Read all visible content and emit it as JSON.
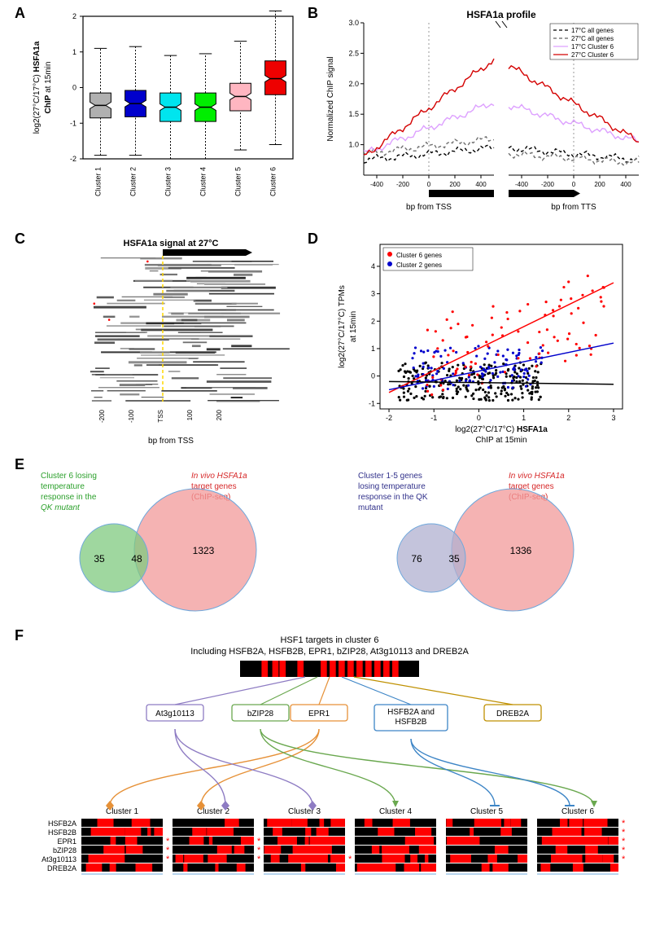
{
  "panelA": {
    "label": "A",
    "ylabel_line1": "log2(27°C/17°C) HSFA1a",
    "ylabel_line2": "ChIP at 15min",
    "ylabel_bold": "HSFA1a",
    "yticks": [
      "-2",
      "-1",
      "0",
      "1",
      "2"
    ],
    "categories": [
      "Cluster 1",
      "Cluster 2",
      "Cluster 3",
      "Cluster 4",
      "Cluster 5",
      "Cluster 6"
    ],
    "boxes": [
      {
        "fill": "#b0b0b0",
        "median": -0.5,
        "q1": -0.85,
        "q3": -0.15,
        "wlo": -1.9,
        "whi": 1.1
      },
      {
        "fill": "#0000cc",
        "median": -0.45,
        "q1": -0.82,
        "q3": -0.08,
        "wlo": -1.9,
        "whi": 1.15
      },
      {
        "fill": "#00e5ee",
        "median": -0.55,
        "q1": -0.95,
        "q3": -0.15,
        "wlo": -2.0,
        "whi": 0.9
      },
      {
        "fill": "#00ee00",
        "median": -0.55,
        "q1": -0.95,
        "q3": -0.15,
        "wlo": -2.0,
        "whi": 0.95
      },
      {
        "fill": "#ffb6c1",
        "median": -0.25,
        "q1": -0.65,
        "q3": 0.12,
        "wlo": -1.75,
        "whi": 1.3
      },
      {
        "fill": "#ee0000",
        "median": 0.25,
        "q1": -0.2,
        "q3": 0.75,
        "wlo": -1.6,
        "whi": 2.15
      }
    ],
    "ylim": [
      -2,
      2
    ]
  },
  "panelB": {
    "label": "B",
    "title": "HSFA1a profile",
    "ylabel": "Normalized ChIP signal",
    "xlabel_left": "bp from TSS",
    "xlabel_right": "bp from TTS",
    "legend": [
      {
        "label": "17°C all genes",
        "color": "#000000",
        "dash": "4,3"
      },
      {
        "label": "27°C all genes",
        "color": "#606060",
        "dash": "4,3"
      },
      {
        "label": "17°C Cluster 6",
        "color": "#dda0ff",
        "dash": ""
      },
      {
        "label": "27°C Cluster 6",
        "color": "#d40000",
        "dash": ""
      }
    ],
    "yticks": [
      "1.0",
      "1.5",
      "2.0",
      "2.5",
      "3.0"
    ],
    "xticks_left": [
      "-400",
      "-200",
      "0",
      "200",
      "400"
    ],
    "xticks_right": [
      "-400",
      "-200",
      "0",
      "200",
      "400"
    ],
    "ylim": [
      0.5,
      3.0
    ]
  },
  "panelC": {
    "label": "C",
    "title": "HSFA1a signal at 27°C",
    "xlabel": "bp from TSS",
    "xticks": [
      "-200",
      "-100",
      "TSS",
      "100",
      "200"
    ],
    "tss_line_color": "#ffd800"
  },
  "panelD": {
    "label": "D",
    "ylabel_line1": "log2(27°C/17°C) TPMs",
    "ylabel_line2": "at 15min",
    "xlabel_line1": "log2(27°C/17°C) HSFA1a",
    "xlabel_line2": "ChIP at 15min",
    "xticks": [
      "-2",
      "-1",
      "0",
      "1",
      "2",
      "3"
    ],
    "yticks": [
      "-1",
      "0",
      "1",
      "2",
      "3",
      "4"
    ],
    "legend": [
      {
        "label": "Cluster 6 genes",
        "color": "#ff0000"
      },
      {
        "label": "Cluster 2 genes",
        "color": "#0000cc"
      }
    ],
    "lines": [
      {
        "color": "#ff0000",
        "x1": -2,
        "y1": -0.6,
        "x2": 3,
        "y2": 3.4
      },
      {
        "color": "#0000cc",
        "x1": -2,
        "y1": -0.5,
        "x2": 3,
        "y2": 1.2
      },
      {
        "color": "#000000",
        "x1": -2,
        "y1": -0.2,
        "x2": 3,
        "y2": -0.3
      }
    ],
    "xlim": [
      -2.2,
      3.2
    ],
    "ylim": [
      -1.2,
      4.8
    ]
  },
  "panelE": {
    "label": "E",
    "left": {
      "set1_text1": "Cluster 6 losing",
      "set1_text2": "temperature",
      "set1_text3": "response in the",
      "set1_text4": "QK mutant",
      "set1_color": "#7fc97f",
      "set2_text1": "In vivo HSFA1a",
      "set2_text2": "target genes",
      "set2_text3": "(ChIP-seq)",
      "set2_color": "#f29999",
      "set1_only": "35",
      "overlap": "48",
      "set2_only": "1323",
      "label1_color": "#2ca02c",
      "label2_color": "#d62728"
    },
    "right": {
      "set1_text1": "Cluster 1-5 genes",
      "set1_text2": "losing temperature",
      "set1_text3": "response in the QK",
      "set1_text4": "mutant",
      "set1_color": "#b0b0d0",
      "set2_text1": "In vivo HSFA1a",
      "set2_text2": "target genes",
      "set2_text3": "(ChIP-seq)",
      "set2_color": "#f29999",
      "set1_only": "76",
      "overlap": "35",
      "set2_only": "1336",
      "label1_color": "#30308a",
      "label2_color": "#d62728"
    }
  },
  "panelF": {
    "label": "F",
    "title1": "HSF1 targets in cluster 6",
    "title2": "Including HSFB2A, HSFB2B, EPR1, bZIP28, At3g10113 and DREB2A",
    "tfs": [
      {
        "name": "At3g10113",
        "border": "#8e7cc3"
      },
      {
        "name": "bZIP28",
        "border": "#6aa84f"
      },
      {
        "name": "EPR1",
        "border": "#e69138"
      },
      {
        "name": "HSFB2A and\nHSFB2B",
        "border": "#3d85c6"
      },
      {
        "name": "DREB2A",
        "border": "#bf9000"
      }
    ],
    "clusters": [
      "Cluster 1",
      "Cluster 2",
      "Cluster 3",
      "Cluster 4",
      "Cluster 5",
      "Cluster 6"
    ],
    "rows": [
      "HSFB2A",
      "HSFB2B",
      "EPR1",
      "bZIP28",
      "At3g10113",
      "DREB2A"
    ],
    "star": "*",
    "star_color": "#ff0000"
  }
}
